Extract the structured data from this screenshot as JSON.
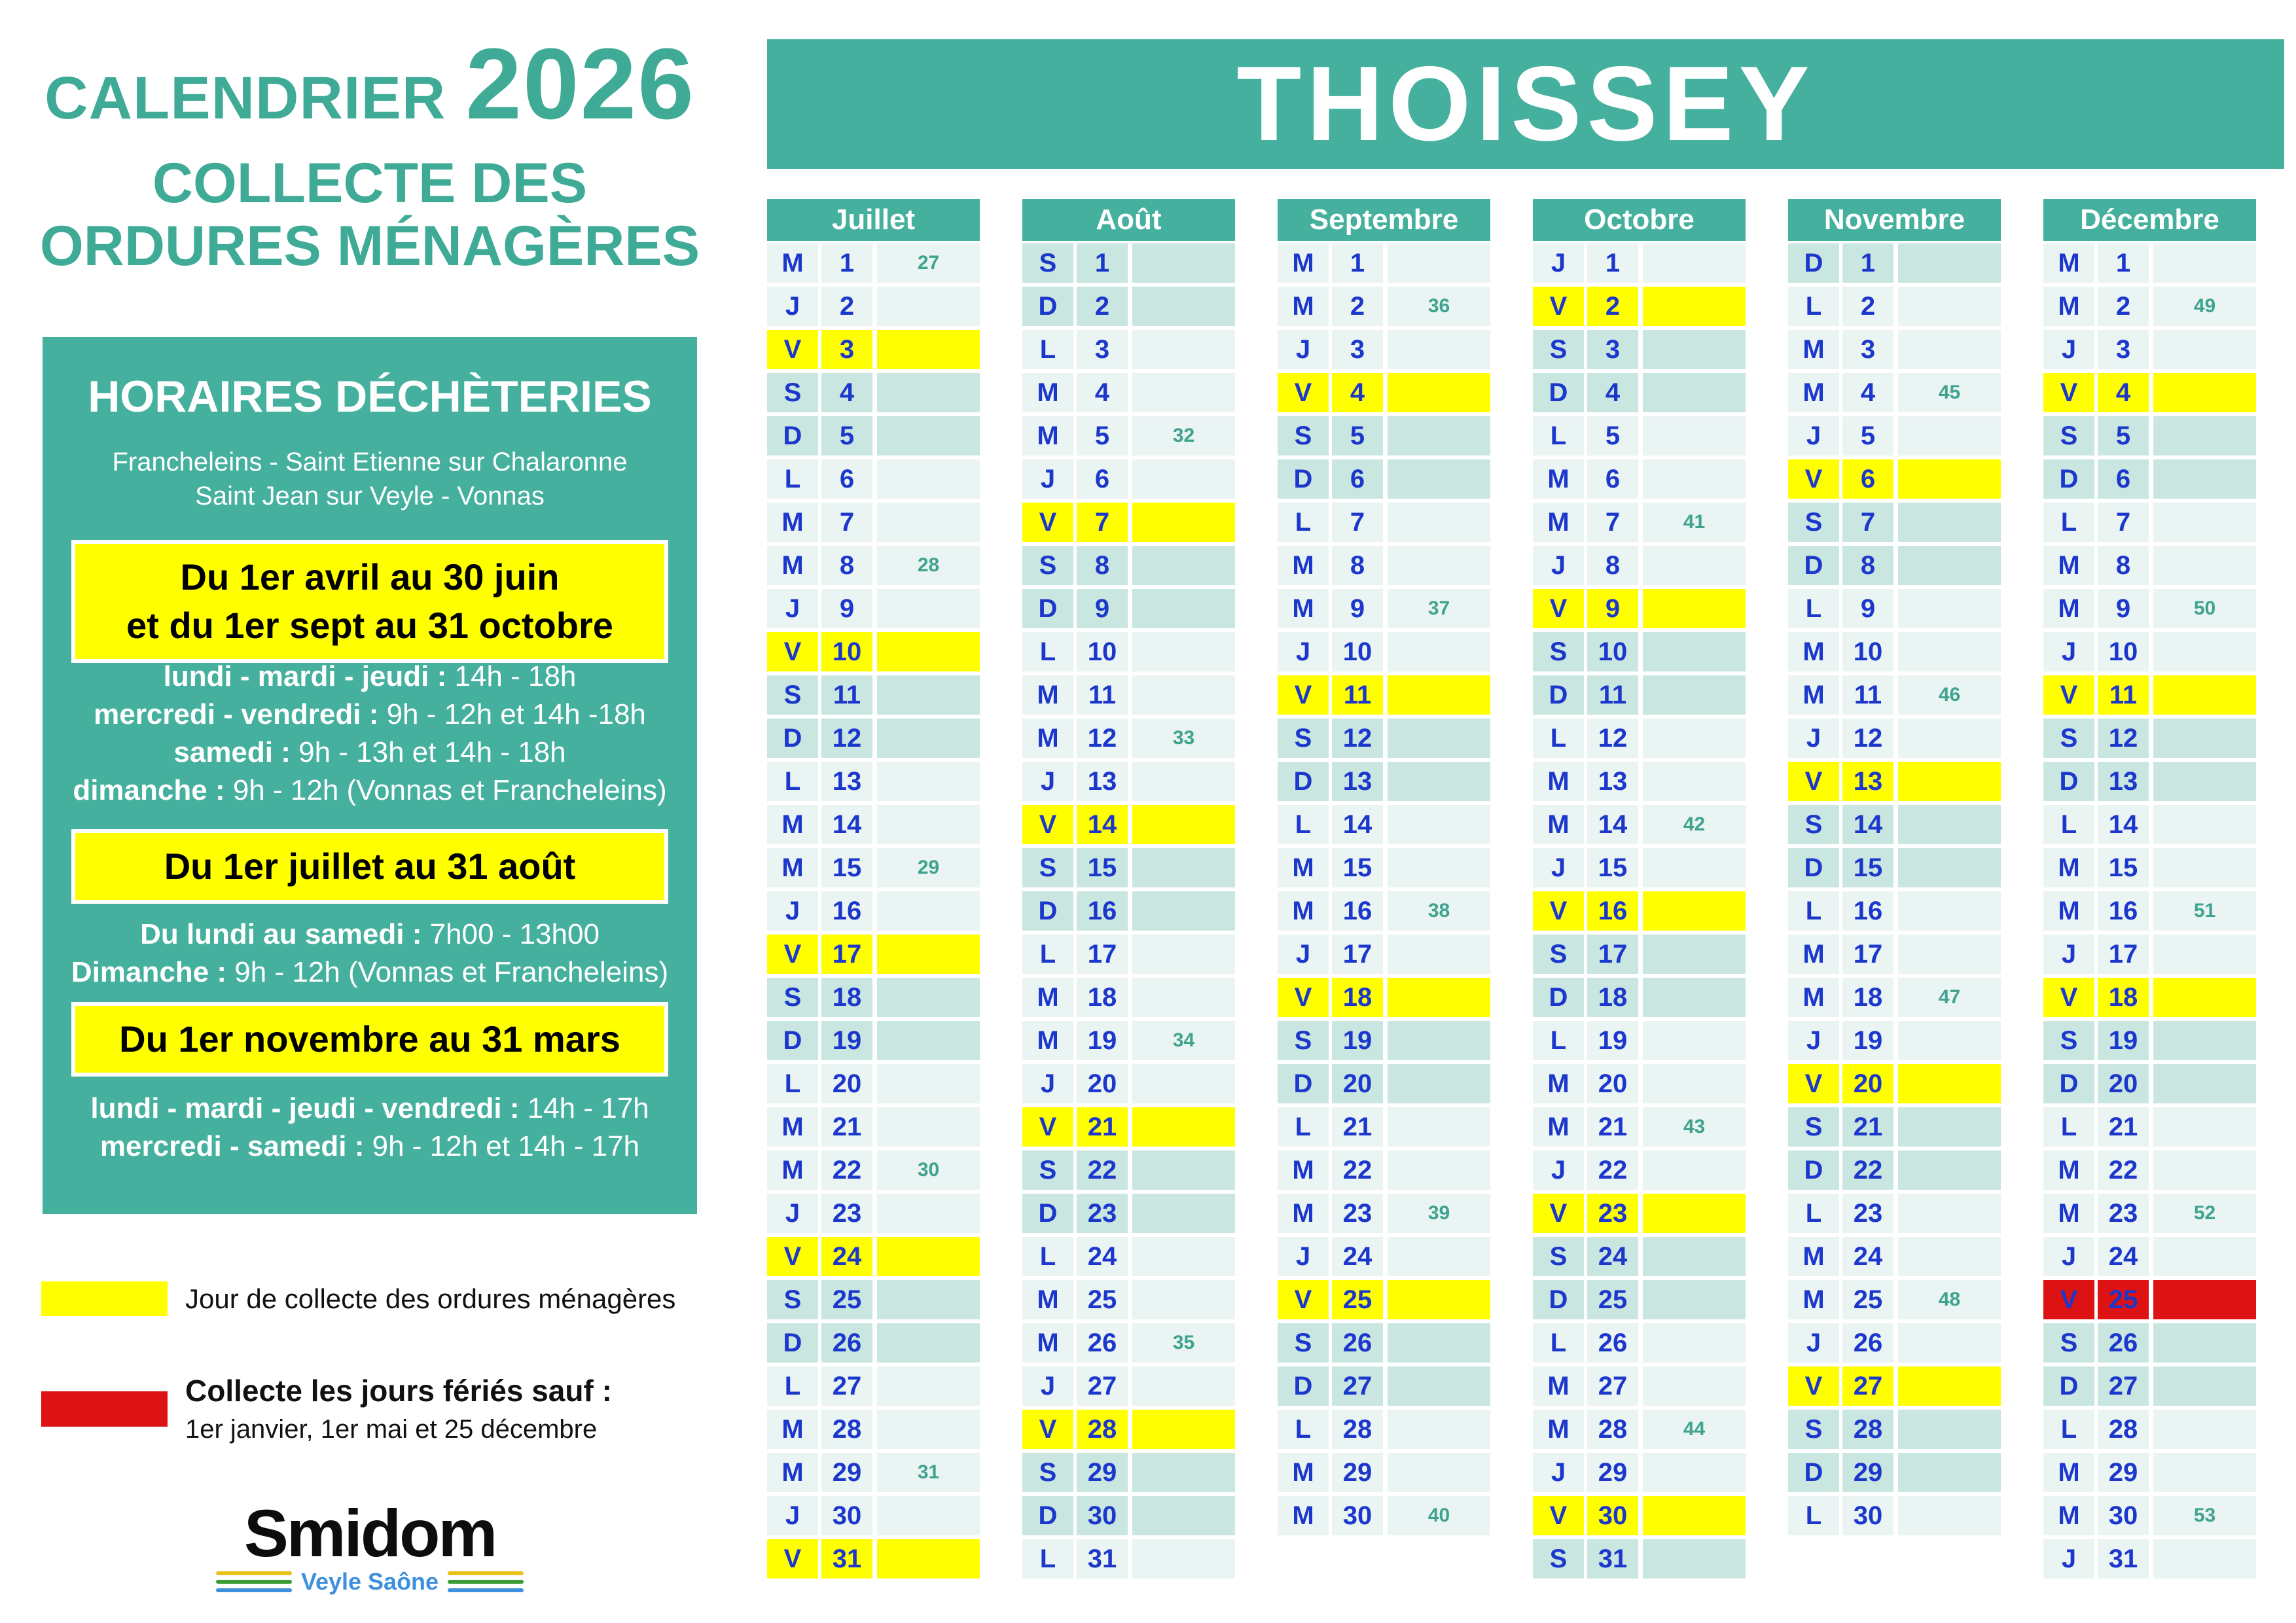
{
  "colors": {
    "teal": "#45b09e",
    "title_teal": "#3fab97",
    "collect_yellow": "#ffff00",
    "holiday_red": "#dd1212",
    "day_blue": "#1c38cc",
    "week_green": "#3fa38f",
    "row_light": "#eaf4f2",
    "row_weekend": "#c9e6e1"
  },
  "header": {
    "calendar_label": "CALENDRIER",
    "year": "2026",
    "subtitle_line1": "COLLECTE DES",
    "subtitle_line2": "ORDURES MÉNAGÈRES",
    "town": "THOISSEY"
  },
  "dechetteries": {
    "title": "HORAIRES DÉCHÈTERIES",
    "sites_line1": "Francheleins - Saint Etienne sur Chalaronne",
    "sites_line2": "Saint Jean sur Veyle - Vonnas",
    "periods": [
      {
        "banner_line1": "Du 1er avril au 30 juin",
        "banner_line2": "et du 1er sept au 31 octobre",
        "schedules": [
          {
            "label": "lundi - mardi - jeudi :",
            "hours": " 14h - 18h"
          },
          {
            "label": "mercredi - vendredi :",
            "hours": " 9h - 12h et 14h -18h"
          },
          {
            "label": "samedi :",
            "hours": " 9h - 13h et 14h - 18h"
          },
          {
            "label": "dimanche :",
            "hours": " 9h - 12h (Vonnas et Francheleins)"
          }
        ]
      },
      {
        "banner_line1": "Du 1er juillet au 31 août",
        "schedules": [
          {
            "label": "Du lundi au samedi :",
            "hours": " 7h00 - 13h00"
          },
          {
            "label": "Dimanche :",
            "hours": " 9h - 12h (Vonnas et Francheleins)"
          }
        ]
      },
      {
        "banner_line1": "Du 1er novembre au 31 mars",
        "schedules": [
          {
            "label": "lundi - mardi - jeudi - vendredi :",
            "hours": " 14h - 17h"
          },
          {
            "label": "mercredi - samedi :",
            "hours": " 9h - 12h et 14h - 17h"
          }
        ]
      }
    ]
  },
  "legend": {
    "collect_day": "Jour de collecte des ordures ménagères",
    "holiday_title": "Collecte les jours fériés sauf :",
    "holiday_detail": "1er janvier, 1er mai et 25 décembre"
  },
  "logo": {
    "name": "Smidom",
    "tagline": "Veyle Saône"
  },
  "months": [
    {
      "name": "Juillet",
      "days": [
        {
          "d": "M",
          "n": 1,
          "w": 27,
          "t": "wd"
        },
        {
          "d": "J",
          "n": 2,
          "t": "wd"
        },
        {
          "d": "V",
          "n": 3,
          "t": "col"
        },
        {
          "d": "S",
          "n": 4,
          "t": "we"
        },
        {
          "d": "D",
          "n": 5,
          "t": "we"
        },
        {
          "d": "L",
          "n": 6,
          "t": "wd"
        },
        {
          "d": "M",
          "n": 7,
          "t": "wd"
        },
        {
          "d": "M",
          "n": 8,
          "w": 28,
          "t": "wd"
        },
        {
          "d": "J",
          "n": 9,
          "t": "wd"
        },
        {
          "d": "V",
          "n": 10,
          "t": "col"
        },
        {
          "d": "S",
          "n": 11,
          "t": "we"
        },
        {
          "d": "D",
          "n": 12,
          "t": "we"
        },
        {
          "d": "L",
          "n": 13,
          "t": "wd"
        },
        {
          "d": "M",
          "n": 14,
          "t": "wd"
        },
        {
          "d": "M",
          "n": 15,
          "w": 29,
          "t": "wd"
        },
        {
          "d": "J",
          "n": 16,
          "t": "wd"
        },
        {
          "d": "V",
          "n": 17,
          "t": "col"
        },
        {
          "d": "S",
          "n": 18,
          "t": "we"
        },
        {
          "d": "D",
          "n": 19,
          "t": "we"
        },
        {
          "d": "L",
          "n": 20,
          "t": "wd"
        },
        {
          "d": "M",
          "n": 21,
          "t": "wd"
        },
        {
          "d": "M",
          "n": 22,
          "w": 30,
          "t": "wd"
        },
        {
          "d": "J",
          "n": 23,
          "t": "wd"
        },
        {
          "d": "V",
          "n": 24,
          "t": "col"
        },
        {
          "d": "S",
          "n": 25,
          "t": "we"
        },
        {
          "d": "D",
          "n": 26,
          "t": "we"
        },
        {
          "d": "L",
          "n": 27,
          "t": "wd"
        },
        {
          "d": "M",
          "n": 28,
          "t": "wd"
        },
        {
          "d": "M",
          "n": 29,
          "w": 31,
          "t": "wd"
        },
        {
          "d": "J",
          "n": 30,
          "t": "wd"
        },
        {
          "d": "V",
          "n": 31,
          "t": "col"
        }
      ]
    },
    {
      "name": "Août",
      "days": [
        {
          "d": "S",
          "n": 1,
          "t": "we"
        },
        {
          "d": "D",
          "n": 2,
          "t": "we"
        },
        {
          "d": "L",
          "n": 3,
          "t": "wd"
        },
        {
          "d": "M",
          "n": 4,
          "t": "wd"
        },
        {
          "d": "M",
          "n": 5,
          "w": 32,
          "t": "wd"
        },
        {
          "d": "J",
          "n": 6,
          "t": "wd"
        },
        {
          "d": "V",
          "n": 7,
          "t": "col"
        },
        {
          "d": "S",
          "n": 8,
          "t": "we"
        },
        {
          "d": "D",
          "n": 9,
          "t": "we"
        },
        {
          "d": "L",
          "n": 10,
          "t": "wd"
        },
        {
          "d": "M",
          "n": 11,
          "t": "wd"
        },
        {
          "d": "M",
          "n": 12,
          "w": 33,
          "t": "wd"
        },
        {
          "d": "J",
          "n": 13,
          "t": "wd"
        },
        {
          "d": "V",
          "n": 14,
          "t": "col"
        },
        {
          "d": "S",
          "n": 15,
          "t": "we"
        },
        {
          "d": "D",
          "n": 16,
          "t": "we"
        },
        {
          "d": "L",
          "n": 17,
          "t": "wd"
        },
        {
          "d": "M",
          "n": 18,
          "t": "wd"
        },
        {
          "d": "M",
          "n": 19,
          "w": 34,
          "t": "wd"
        },
        {
          "d": "J",
          "n": 20,
          "t": "wd"
        },
        {
          "d": "V",
          "n": 21,
          "t": "col"
        },
        {
          "d": "S",
          "n": 22,
          "t": "we"
        },
        {
          "d": "D",
          "n": 23,
          "t": "we"
        },
        {
          "d": "L",
          "n": 24,
          "t": "wd"
        },
        {
          "d": "M",
          "n": 25,
          "t": "wd"
        },
        {
          "d": "M",
          "n": 26,
          "w": 35,
          "t": "wd"
        },
        {
          "d": "J",
          "n": 27,
          "t": "wd"
        },
        {
          "d": "V",
          "n": 28,
          "t": "col"
        },
        {
          "d": "S",
          "n": 29,
          "t": "we"
        },
        {
          "d": "D",
          "n": 30,
          "t": "we"
        },
        {
          "d": "L",
          "n": 31,
          "t": "wd"
        }
      ]
    },
    {
      "name": "Septembre",
      "days": [
        {
          "d": "M",
          "n": 1,
          "t": "wd"
        },
        {
          "d": "M",
          "n": 2,
          "w": 36,
          "t": "wd"
        },
        {
          "d": "J",
          "n": 3,
          "t": "wd"
        },
        {
          "d": "V",
          "n": 4,
          "t": "col"
        },
        {
          "d": "S",
          "n": 5,
          "t": "we"
        },
        {
          "d": "D",
          "n": 6,
          "t": "we"
        },
        {
          "d": "L",
          "n": 7,
          "t": "wd"
        },
        {
          "d": "M",
          "n": 8,
          "t": "wd"
        },
        {
          "d": "M",
          "n": 9,
          "w": 37,
          "t": "wd"
        },
        {
          "d": "J",
          "n": 10,
          "t": "wd"
        },
        {
          "d": "V",
          "n": 11,
          "t": "col"
        },
        {
          "d": "S",
          "n": 12,
          "t": "we"
        },
        {
          "d": "D",
          "n": 13,
          "t": "we"
        },
        {
          "d": "L",
          "n": 14,
          "t": "wd"
        },
        {
          "d": "M",
          "n": 15,
          "t": "wd"
        },
        {
          "d": "M",
          "n": 16,
          "w": 38,
          "t": "wd"
        },
        {
          "d": "J",
          "n": 17,
          "t": "wd"
        },
        {
          "d": "V",
          "n": 18,
          "t": "col"
        },
        {
          "d": "S",
          "n": 19,
          "t": "we"
        },
        {
          "d": "D",
          "n": 20,
          "t": "we"
        },
        {
          "d": "L",
          "n": 21,
          "t": "wd"
        },
        {
          "d": "M",
          "n": 22,
          "t": "wd"
        },
        {
          "d": "M",
          "n": 23,
          "w": 39,
          "t": "wd"
        },
        {
          "d": "J",
          "n": 24,
          "t": "wd"
        },
        {
          "d": "V",
          "n": 25,
          "t": "col"
        },
        {
          "d": "S",
          "n": 26,
          "t": "we"
        },
        {
          "d": "D",
          "n": 27,
          "t": "we"
        },
        {
          "d": "L",
          "n": 28,
          "t": "wd"
        },
        {
          "d": "M",
          "n": 29,
          "t": "wd"
        },
        {
          "d": "M",
          "n": 30,
          "w": 40,
          "t": "wd"
        }
      ]
    },
    {
      "name": "Octobre",
      "days": [
        {
          "d": "J",
          "n": 1,
          "t": "wd"
        },
        {
          "d": "V",
          "n": 2,
          "t": "col"
        },
        {
          "d": "S",
          "n": 3,
          "t": "we"
        },
        {
          "d": "D",
          "n": 4,
          "t": "we"
        },
        {
          "d": "L",
          "n": 5,
          "t": "wd"
        },
        {
          "d": "M",
          "n": 6,
          "t": "wd"
        },
        {
          "d": "M",
          "n": 7,
          "w": 41,
          "t": "wd"
        },
        {
          "d": "J",
          "n": 8,
          "t": "wd"
        },
        {
          "d": "V",
          "n": 9,
          "t": "col"
        },
        {
          "d": "S",
          "n": 10,
          "t": "we"
        },
        {
          "d": "D",
          "n": 11,
          "t": "we"
        },
        {
          "d": "L",
          "n": 12,
          "t": "wd"
        },
        {
          "d": "M",
          "n": 13,
          "t": "wd"
        },
        {
          "d": "M",
          "n": 14,
          "w": 42,
          "t": "wd"
        },
        {
          "d": "J",
          "n": 15,
          "t": "wd"
        },
        {
          "d": "V",
          "n": 16,
          "t": "col"
        },
        {
          "d": "S",
          "n": 17,
          "t": "we"
        },
        {
          "d": "D",
          "n": 18,
          "t": "we"
        },
        {
          "d": "L",
          "n": 19,
          "t": "wd"
        },
        {
          "d": "M",
          "n": 20,
          "t": "wd"
        },
        {
          "d": "M",
          "n": 21,
          "w": 43,
          "t": "wd"
        },
        {
          "d": "J",
          "n": 22,
          "t": "wd"
        },
        {
          "d": "V",
          "n": 23,
          "t": "col"
        },
        {
          "d": "S",
          "n": 24,
          "t": "we"
        },
        {
          "d": "D",
          "n": 25,
          "t": "we"
        },
        {
          "d": "L",
          "n": 26,
          "t": "wd"
        },
        {
          "d": "M",
          "n": 27,
          "t": "wd"
        },
        {
          "d": "M",
          "n": 28,
          "w": 44,
          "t": "wd"
        },
        {
          "d": "J",
          "n": 29,
          "t": "wd"
        },
        {
          "d": "V",
          "n": 30,
          "t": "col"
        },
        {
          "d": "S",
          "n": 31,
          "t": "we"
        }
      ]
    },
    {
      "name": "Novembre",
      "days": [
        {
          "d": "D",
          "n": 1,
          "t": "we"
        },
        {
          "d": "L",
          "n": 2,
          "t": "wd"
        },
        {
          "d": "M",
          "n": 3,
          "t": "wd"
        },
        {
          "d": "M",
          "n": 4,
          "w": 45,
          "t": "wd"
        },
        {
          "d": "J",
          "n": 5,
          "t": "wd"
        },
        {
          "d": "V",
          "n": 6,
          "t": "col"
        },
        {
          "d": "S",
          "n": 7,
          "t": "we"
        },
        {
          "d": "D",
          "n": 8,
          "t": "we"
        },
        {
          "d": "L",
          "n": 9,
          "t": "wd"
        },
        {
          "d": "M",
          "n": 10,
          "t": "wd"
        },
        {
          "d": "M",
          "n": 11,
          "w": 46,
          "t": "wd"
        },
        {
          "d": "J",
          "n": 12,
          "t": "wd"
        },
        {
          "d": "V",
          "n": 13,
          "t": "col"
        },
        {
          "d": "S",
          "n": 14,
          "t": "we"
        },
        {
          "d": "D",
          "n": 15,
          "t": "we"
        },
        {
          "d": "L",
          "n": 16,
          "t": "wd"
        },
        {
          "d": "M",
          "n": 17,
          "t": "wd"
        },
        {
          "d": "M",
          "n": 18,
          "w": 47,
          "t": "wd"
        },
        {
          "d": "J",
          "n": 19,
          "t": "wd"
        },
        {
          "d": "V",
          "n": 20,
          "t": "col"
        },
        {
          "d": "S",
          "n": 21,
          "t": "we"
        },
        {
          "d": "D",
          "n": 22,
          "t": "we"
        },
        {
          "d": "L",
          "n": 23,
          "t": "wd"
        },
        {
          "d": "M",
          "n": 24,
          "t": "wd"
        },
        {
          "d": "M",
          "n": 25,
          "w": 48,
          "t": "wd"
        },
        {
          "d": "J",
          "n": 26,
          "t": "wd"
        },
        {
          "d": "V",
          "n": 27,
          "t": "col"
        },
        {
          "d": "S",
          "n": 28,
          "t": "we"
        },
        {
          "d": "D",
          "n": 29,
          "t": "we"
        },
        {
          "d": "L",
          "n": 30,
          "t": "wd"
        }
      ]
    },
    {
      "name": "Décembre",
      "days": [
        {
          "d": "M",
          "n": 1,
          "t": "wd"
        },
        {
          "d": "M",
          "n": 2,
          "w": 49,
          "t": "wd"
        },
        {
          "d": "J",
          "n": 3,
          "t": "wd"
        },
        {
          "d": "V",
          "n": 4,
          "t": "col"
        },
        {
          "d": "S",
          "n": 5,
          "t": "we"
        },
        {
          "d": "D",
          "n": 6,
          "t": "we"
        },
        {
          "d": "L",
          "n": 7,
          "t": "wd"
        },
        {
          "d": "M",
          "n": 8,
          "t": "wd"
        },
        {
          "d": "M",
          "n": 9,
          "w": 50,
          "t": "wd"
        },
        {
          "d": "J",
          "n": 10,
          "t": "wd"
        },
        {
          "d": "V",
          "n": 11,
          "t": "col"
        },
        {
          "d": "S",
          "n": 12,
          "t": "we"
        },
        {
          "d": "D",
          "n": 13,
          "t": "we"
        },
        {
          "d": "L",
          "n": 14,
          "t": "wd"
        },
        {
          "d": "M",
          "n": 15,
          "t": "wd"
        },
        {
          "d": "M",
          "n": 16,
          "w": 51,
          "t": "wd"
        },
        {
          "d": "J",
          "n": 17,
          "t": "wd"
        },
        {
          "d": "V",
          "n": 18,
          "t": "col"
        },
        {
          "d": "S",
          "n": 19,
          "t": "we"
        },
        {
          "d": "D",
          "n": 20,
          "t": "we"
        },
        {
          "d": "L",
          "n": 21,
          "t": "wd"
        },
        {
          "d": "M",
          "n": 22,
          "t": "wd"
        },
        {
          "d": "M",
          "n": 23,
          "w": 52,
          "t": "wd"
        },
        {
          "d": "J",
          "n": 24,
          "t": "wd"
        },
        {
          "d": "V",
          "n": 25,
          "t": "hol"
        },
        {
          "d": "S",
          "n": 26,
          "t": "we"
        },
        {
          "d": "D",
          "n": 27,
          "t": "we"
        },
        {
          "d": "L",
          "n": 28,
          "t": "wd"
        },
        {
          "d": "M",
          "n": 29,
          "t": "wd"
        },
        {
          "d": "M",
          "n": 30,
          "w": 53,
          "t": "wd"
        },
        {
          "d": "J",
          "n": 31,
          "t": "wd"
        }
      ]
    }
  ]
}
